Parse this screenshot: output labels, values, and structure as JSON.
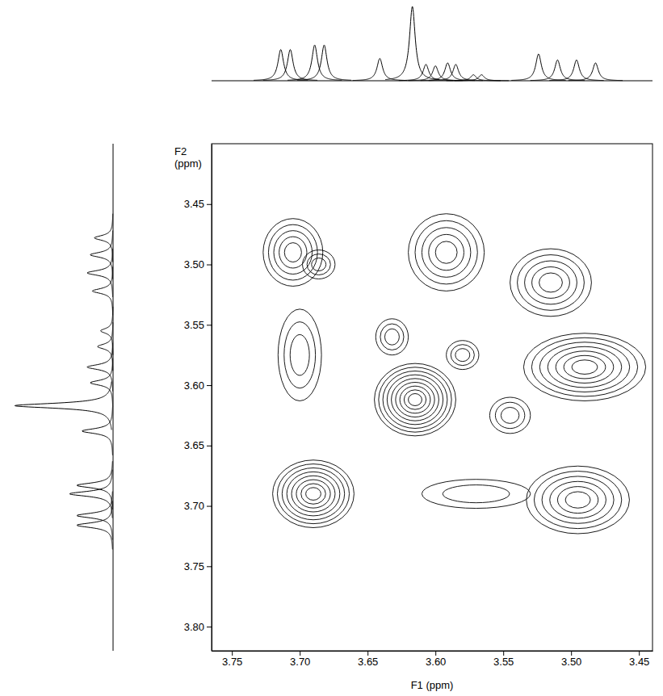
{
  "chart_data": {
    "type": "contour",
    "x_label": "F1 (ppm)",
    "y_label": "F2 (ppm)",
    "xlim": [
      3.765,
      3.44
    ],
    "ylim": [
      3.4,
      3.82
    ],
    "xticks": [
      3.75,
      {
        "value": 3.7,
        "label": "3.70"
      },
      3.65,
      {
        "value": 3.6,
        "label": "3.60"
      },
      3.55,
      {
        "value": 3.5,
        "label": "3.50"
      },
      3.45
    ],
    "yticks": [
      3.45,
      {
        "value": 3.5,
        "label": "3.50"
      },
      3.55,
      {
        "value": 3.6,
        "label": "3.60"
      },
      3.65,
      {
        "value": 3.7,
        "label": "3.70"
      },
      3.75,
      {
        "value": 3.8,
        "label": "3.80"
      }
    ],
    "color": "#000000",
    "peaks": {
      "x": [
        3.705,
        3.686,
        3.7,
        3.69,
        3.592,
        3.515,
        3.49,
        3.615,
        3.632,
        3.58,
        3.545,
        3.57,
        3.495
      ],
      "y": [
        3.49,
        3.5,
        3.575,
        3.69,
        3.49,
        3.515,
        3.585,
        3.612,
        3.56,
        3.575,
        3.625,
        3.69,
        3.695
      ],
      "x_width": [
        0.022,
        0.012,
        0.016,
        0.03,
        0.028,
        0.03,
        0.045,
        0.03,
        0.012,
        0.012,
        0.015,
        0.04,
        0.038
      ],
      "y_width": [
        0.028,
        0.012,
        0.038,
        0.028,
        0.032,
        0.028,
        0.028,
        0.03,
        0.015,
        0.012,
        0.015,
        0.012,
        0.028
      ],
      "levels": [
        5,
        3,
        3,
        8,
        5,
        5,
        7,
        9,
        3,
        3,
        3,
        2,
        6
      ]
    },
    "top_spectrum": {
      "x": [
        3.714,
        3.707,
        3.689,
        3.682,
        3.641,
        3.617,
        3.607,
        3.6,
        3.591,
        3.585,
        3.572,
        3.566,
        3.524,
        3.51,
        3.496,
        3.482
      ],
      "heights": [
        0.42,
        0.42,
        0.48,
        0.48,
        0.3,
        1.0,
        0.22,
        0.2,
        0.24,
        0.22,
        0.08,
        0.08,
        0.36,
        0.28,
        0.28,
        0.24
      ]
    },
    "left_spectrum": {
      "y": [
        3.478,
        3.492,
        3.507,
        3.522,
        3.555,
        3.568,
        3.585,
        3.598,
        3.617,
        3.638,
        3.683,
        3.69,
        3.708,
        3.716
      ],
      "heights": [
        0.18,
        0.22,
        0.25,
        0.2,
        0.12,
        0.15,
        0.25,
        0.22,
        0.95,
        0.3,
        0.35,
        0.42,
        0.35,
        0.35
      ]
    }
  }
}
